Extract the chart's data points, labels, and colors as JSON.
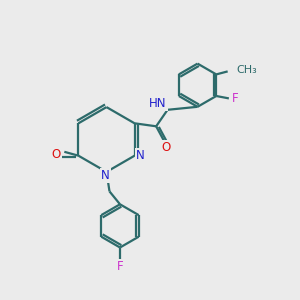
{
  "bg_color": "#ebebeb",
  "bond_color": "#2d6b6b",
  "n_color": "#2020cc",
  "o_color": "#dd1111",
  "f_color": "#cc33cc",
  "line_width": 1.6,
  "font_size": 8.5,
  "xlim": [
    0,
    10
  ],
  "ylim": [
    0,
    10
  ]
}
